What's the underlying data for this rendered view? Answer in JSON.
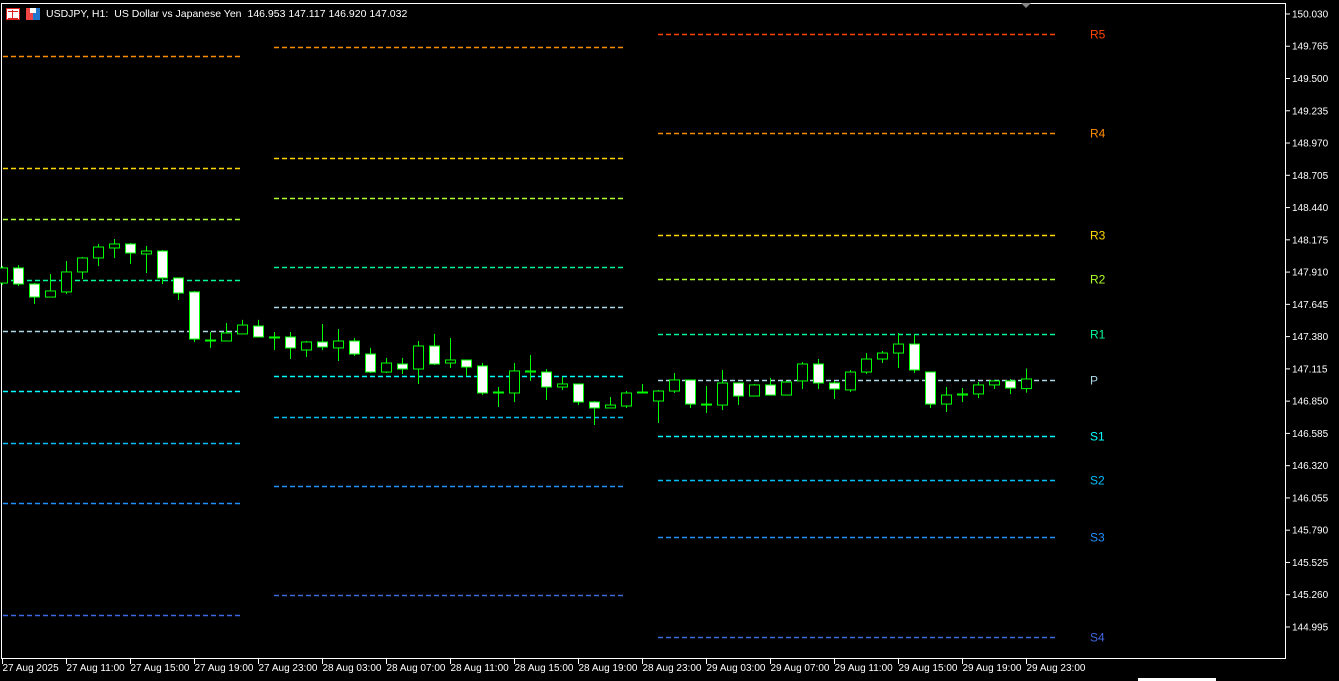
{
  "header": {
    "symbol": "USDJPY, H1:",
    "description": "US Dollar vs Japanese Yen",
    "ohlc": "146.953 147.117 146.920 147.032",
    "icons": [
      "list-icon",
      "save-template-icon"
    ]
  },
  "colors": {
    "background": "#000000",
    "frame": "#ffffff",
    "candle_border": "#00ff00",
    "bull_fill": "#000000",
    "bear_fill": "#ffffff"
  },
  "chart_data": {
    "type": "candlestick",
    "ylim": [
      144.732,
      150.112
    ],
    "grid": false,
    "y_ticks": [
      "150.030",
      "149.765",
      "149.500",
      "149.235",
      "148.970",
      "148.705",
      "148.440",
      "148.175",
      "147.910",
      "147.645",
      "147.380",
      "147.115",
      "146.850",
      "146.585",
      "146.320",
      "146.055",
      "145.790",
      "145.525",
      "145.260",
      "144.995"
    ],
    "x_ticks": [
      "27 Aug 2025",
      "27 Aug 11:00",
      "27 Aug 15:00",
      "27 Aug 19:00",
      "27 Aug 23:00",
      "28 Aug 03:00",
      "28 Aug 07:00",
      "28 Aug 11:00",
      "28 Aug 15:00",
      "28 Aug 19:00",
      "28 Aug 23:00",
      "29 Aug 03:00",
      "29 Aug 07:00",
      "29 Aug 11:00",
      "29 Aug 15:00",
      "29 Aug 19:00",
      "29 Aug 23:00"
    ],
    "first_bar": "27 Aug 2025 07:00",
    "timeframe": "H1",
    "candles": [
      [
        147.82,
        147.96,
        147.804,
        147.944
      ],
      [
        147.944,
        147.968,
        147.796,
        147.812
      ],
      [
        147.812,
        147.82,
        147.648,
        147.705
      ],
      [
        147.705,
        147.894,
        147.705,
        147.755
      ],
      [
        147.747,
        148.001,
        147.73,
        147.911
      ],
      [
        147.911,
        148.034,
        147.853,
        148.026
      ],
      [
        148.026,
        148.141,
        147.96,
        148.116
      ],
      [
        148.108,
        148.182,
        148.026,
        148.141
      ],
      [
        148.141,
        148.149,
        147.977,
        148.067
      ],
      [
        148.059,
        148.124,
        147.903,
        148.083
      ],
      [
        148.083,
        148.091,
        147.812,
        147.862
      ],
      [
        147.862,
        147.862,
        147.681,
        147.738
      ],
      [
        147.747,
        147.755,
        147.336,
        147.36
      ],
      [
        147.352,
        147.418,
        147.287,
        147.352
      ],
      [
        147.344,
        147.492,
        147.344,
        147.41
      ],
      [
        147.402,
        147.517,
        147.402,
        147.475
      ],
      [
        147.467,
        147.517,
        147.377,
        147.377
      ],
      [
        147.377,
        147.418,
        147.27,
        147.377
      ],
      [
        147.377,
        147.418,
        147.196,
        147.287
      ],
      [
        147.27,
        147.344,
        147.213,
        147.336
      ],
      [
        147.336,
        147.484,
        147.27,
        147.295
      ],
      [
        147.287,
        147.443,
        147.18,
        147.344
      ],
      [
        147.344,
        147.369,
        147.221,
        147.237
      ],
      [
        147.237,
        147.287,
        147.081,
        147.089
      ],
      [
        147.089,
        147.204,
        147.081,
        147.163
      ],
      [
        147.155,
        147.204,
        147.073,
        147.114
      ],
      [
        147.114,
        147.344,
        146.991,
        147.303
      ],
      [
        147.303,
        147.402,
        147.147,
        147.155
      ],
      [
        147.163,
        147.369,
        147.122,
        147.188
      ],
      [
        147.188,
        147.188,
        147.056,
        147.13
      ],
      [
        147.139,
        147.163,
        146.9,
        146.917
      ],
      [
        146.925,
        146.966,
        146.802,
        146.925
      ],
      [
        146.917,
        147.163,
        146.843,
        147.098
      ],
      [
        147.089,
        147.229,
        147.016,
        147.098
      ],
      [
        147.089,
        147.114,
        146.859,
        146.966
      ],
      [
        146.966,
        147.048,
        146.942,
        146.991
      ],
      [
        146.991,
        146.991,
        146.818,
        146.843
      ],
      [
        146.843,
        146.851,
        146.654,
        146.794
      ],
      [
        146.794,
        146.884,
        146.794,
        146.818
      ],
      [
        146.81,
        146.933,
        146.794,
        146.917
      ],
      [
        146.917,
        146.991,
        146.917,
        146.925
      ],
      [
        146.851,
        146.942,
        146.67,
        146.933
      ],
      [
        146.933,
        147.081,
        146.917,
        147.024
      ],
      [
        147.024,
        147.024,
        146.794,
        146.826
      ],
      [
        146.826,
        146.974,
        146.753,
        146.826
      ],
      [
        146.818,
        147.106,
        146.777,
        146.999
      ],
      [
        146.999,
        146.999,
        146.818,
        146.892
      ],
      [
        146.892,
        146.991,
        146.892,
        146.983
      ],
      [
        146.983,
        147.04,
        146.9,
        146.9
      ],
      [
        146.9,
        147.016,
        146.9,
        147.007
      ],
      [
        147.016,
        147.171,
        146.95,
        147.155
      ],
      [
        147.155,
        147.196,
        146.95,
        146.999
      ],
      [
        146.999,
        147.016,
        146.868,
        146.95
      ],
      [
        146.942,
        147.106,
        146.925,
        147.089
      ],
      [
        147.089,
        147.245,
        147.073,
        147.196
      ],
      [
        147.196,
        147.262,
        147.163,
        147.245
      ],
      [
        147.245,
        147.41,
        147.122,
        147.319
      ],
      [
        147.319,
        147.393,
        147.081,
        147.106
      ],
      [
        147.089,
        147.089,
        146.794,
        146.826
      ],
      [
        146.826,
        146.966,
        146.761,
        146.9
      ],
      [
        146.9,
        146.958,
        146.843,
        146.909
      ],
      [
        146.909,
        147.007,
        146.876,
        146.983
      ],
      [
        146.983,
        147.024,
        146.95,
        147.016
      ],
      [
        147.016,
        147.032,
        146.909,
        146.958
      ],
      [
        146.953,
        147.117,
        146.92,
        147.032
      ]
    ],
    "pivot_levels": {
      "names": [
        "R5",
        "R4",
        "R3",
        "R2",
        "R1",
        "P",
        "S1",
        "S2",
        "S3",
        "S4"
      ],
      "colors": [
        "#ff4500",
        "#ff8c00",
        "#ffd700",
        "#adff2f",
        "#00fa9a",
        "#add8e6",
        "#00ffff",
        "#00bfff",
        "#1e90ff",
        "#4169e1"
      ],
      "days": [
        {
          "day": "27 Aug",
          "values": [
            null,
            149.685,
            148.765,
            148.346,
            147.845,
            147.426,
            146.933,
            146.506,
            146.014,
            145.094
          ]
        },
        {
          "day": "28 Aug",
          "values": [
            null,
            149.759,
            148.847,
            148.519,
            147.952,
            147.623,
            147.057,
            146.72,
            146.153,
            145.258
          ]
        },
        {
          "day": "29 Aug",
          "values": [
            149.866,
            149.053,
            148.215,
            147.853,
            147.402,
            147.024,
            146.564,
            146.202,
            145.734,
            144.913
          ],
          "labeled": true
        }
      ]
    }
  }
}
